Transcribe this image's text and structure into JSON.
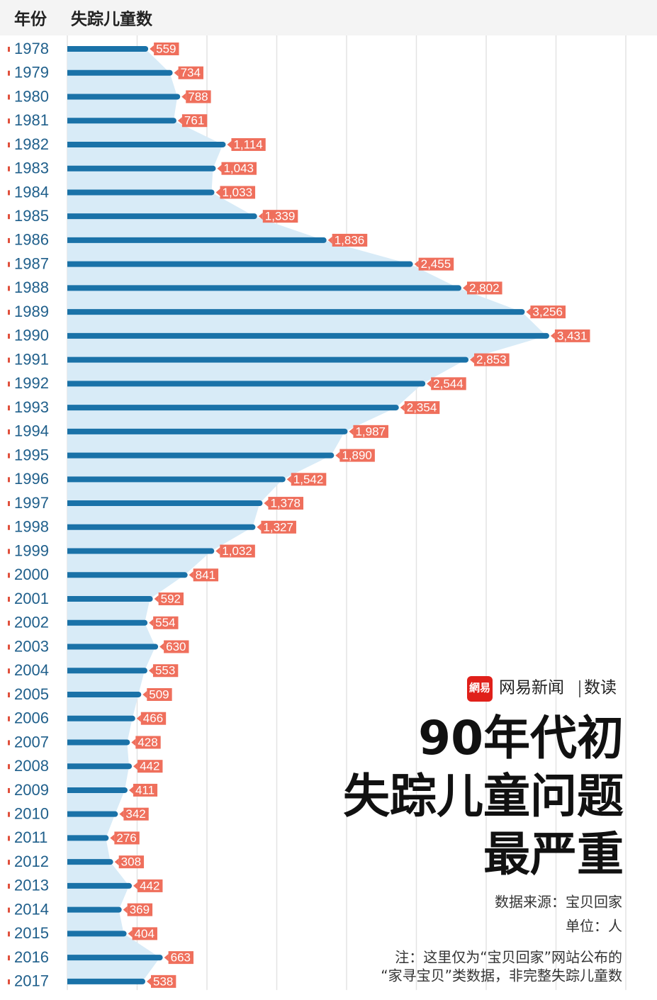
{
  "chart_data": {
    "type": "bar",
    "orientation": "horizontal",
    "title": [
      "90年代初",
      "失踪儿童问题",
      "最严重"
    ],
    "category_header": "年份",
    "value_header": "失踪儿童数",
    "source": "数据来源：宝贝回家",
    "unit": "单位：人",
    "note": [
      "注：这里仅为“宝贝回家”网站公布的",
      "“家寻宝贝”类数据，非完整失踪儿童数"
    ],
    "categories": [
      "1978",
      "1979",
      "1980",
      "1981",
      "1982",
      "1983",
      "1984",
      "1985",
      "1986",
      "1987",
      "1988",
      "1989",
      "1990",
      "1991",
      "1992",
      "1993",
      "1994",
      "1995",
      "1996",
      "1997",
      "1998",
      "1999",
      "2000",
      "2001",
      "2002",
      "2003",
      "2004",
      "2005",
      "2006",
      "2007",
      "2008",
      "2009",
      "2010",
      "2011",
      "2012",
      "2013",
      "2014",
      "2015",
      "2016",
      "2017"
    ],
    "values": [
      559,
      734,
      788,
      761,
      1114,
      1043,
      1033,
      1339,
      1836,
      2455,
      2802,
      3256,
      3431,
      2853,
      2544,
      2354,
      1987,
      1890,
      1542,
      1378,
      1327,
      1032,
      841,
      592,
      554,
      630,
      553,
      509,
      466,
      428,
      442,
      411,
      342,
      276,
      308,
      442,
      369,
      404,
      663,
      538
    ],
    "value_labels": [
      "559",
      "734",
      "788",
      "761",
      "1,114",
      "1,043",
      "1,033",
      "1,339",
      "1,836",
      "2,455",
      "2,802",
      "3,256",
      "3,431",
      "2,853",
      "2,544",
      "2,354",
      "1,987",
      "1,890",
      "1,542",
      "1,378",
      "1,327",
      "1,032",
      "841",
      "592",
      "554",
      "630",
      "553",
      "509",
      "466",
      "428",
      "442",
      "411",
      "342",
      "276",
      "308",
      "442",
      "369",
      "404",
      "663",
      "538"
    ],
    "color": "#1a72a8",
    "area_color": "#d8ebf7",
    "label_color": "#ef6f5c",
    "xlim": [
      0,
      4000
    ],
    "xticks": [
      0,
      500,
      1000,
      1500,
      2000,
      2500,
      3000,
      3500,
      4000
    ],
    "grid": true
  },
  "logo": {
    "icon_text": "網易",
    "name": "网易新闻",
    "section": "数读"
  }
}
